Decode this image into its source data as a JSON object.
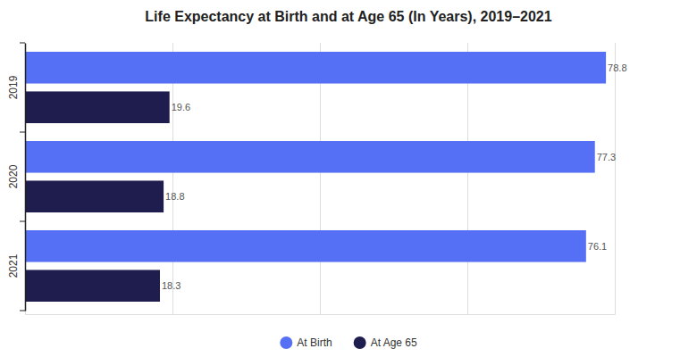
{
  "chart_data": {
    "type": "bar",
    "title": "Life Expectancy at Birth and at Age 65 (In Years), 2019–2021",
    "orientation": "horizontal",
    "categories": [
      "2019",
      "2020",
      "2021"
    ],
    "series": [
      {
        "name": "At Birth",
        "color": "#5670f5",
        "values": [
          78.8,
          77.3,
          76.1
        ]
      },
      {
        "name": "At Age 65",
        "color": "#1f1c4e",
        "values": [
          19.6,
          18.8,
          18.3
        ]
      }
    ],
    "xlim": [
      0,
      80
    ],
    "xticks": [
      0,
      20,
      40,
      60,
      80
    ],
    "grid": true,
    "data_labels": true,
    "legend": "bottom",
    "tick_labels": "y"
  }
}
